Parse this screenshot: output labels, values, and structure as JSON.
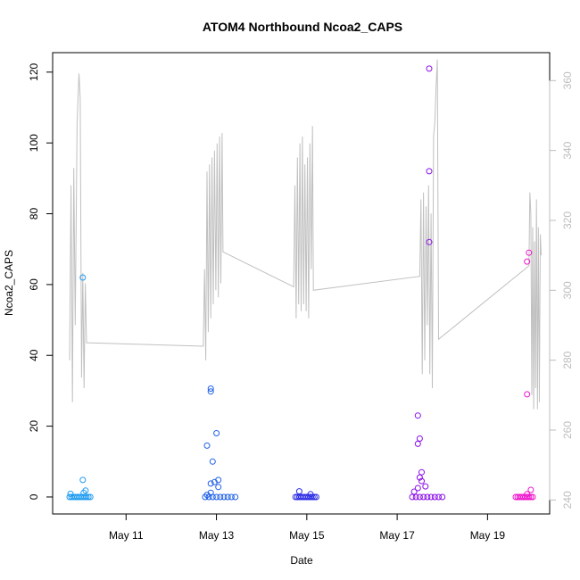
{
  "chart_data": {
    "type": "scatter",
    "title": "ATOM4 Northbound Ncoa2_CAPS",
    "xlabel": "Date",
    "ylabel": "Ncoa2_CAPS",
    "x_unit": "date",
    "xlim": [
      "2024-05-09T09:00",
      "2024-05-20T09:00"
    ],
    "ylim": [
      -4.8,
      125.5
    ],
    "y2lim": [
      236,
      368
    ],
    "x_ticks": [
      {
        "x": "2024-05-11T00:00",
        "label": "May 11"
      },
      {
        "x": "2024-05-13T00:00",
        "label": "May 13"
      },
      {
        "x": "2024-05-15T00:00",
        "label": "May 15"
      },
      {
        "x": "2024-05-17T00:00",
        "label": "May 17"
      },
      {
        "x": "2024-05-19T00:00",
        "label": "May 19"
      }
    ],
    "y_ticks": [
      0,
      20,
      40,
      60,
      80,
      100,
      120
    ],
    "y2_ticks": [
      240,
      260,
      280,
      300,
      320,
      340,
      360
    ],
    "grid": false,
    "legend": "none",
    "colors": {
      "line": "#c0c0c0",
      "right_axis": "#bdbdbd",
      "group_1": "#1e9bf0",
      "group_2": "#2060e8",
      "group_3": "#2a2ae6",
      "group_4": "#8a10e8",
      "group_5": "#ee16cc"
    },
    "scatter_series": [
      {
        "color_key": "group_1",
        "points": [
          {
            "x": "2024-05-09T18:00",
            "y": 0
          },
          {
            "x": "2024-05-09T19:00",
            "y": 0
          },
          {
            "x": "2024-05-09T20:00",
            "y": 0
          },
          {
            "x": "2024-05-09T21:00",
            "y": 0
          },
          {
            "x": "2024-05-09T22:00",
            "y": 0
          },
          {
            "x": "2024-05-09T23:00",
            "y": 0
          },
          {
            "x": "2024-05-10T00:00",
            "y": 0
          },
          {
            "x": "2024-05-10T01:00",
            "y": 0
          },
          {
            "x": "2024-05-10T02:00",
            "y": 0
          },
          {
            "x": "2024-05-10T03:00",
            "y": 0
          },
          {
            "x": "2024-05-10T04:00",
            "y": 0
          },
          {
            "x": "2024-05-10T05:00",
            "y": 0
          },
          {
            "x": "2024-05-09T18:30",
            "y": 0.9
          },
          {
            "x": "2024-05-10T01:30",
            "y": 1.2
          },
          {
            "x": "2024-05-10T02:30",
            "y": 1.8
          },
          {
            "x": "2024-05-10T01:00",
            "y": 4.8
          },
          {
            "x": "2024-05-10T01:00",
            "y": 62
          }
        ]
      },
      {
        "color_key": "group_2",
        "points": [
          {
            "x": "2024-05-12T18:00",
            "y": 0
          },
          {
            "x": "2024-05-12T20:00",
            "y": 0
          },
          {
            "x": "2024-05-12T22:00",
            "y": 0
          },
          {
            "x": "2024-05-13T00:00",
            "y": 0
          },
          {
            "x": "2024-05-13T02:00",
            "y": 0
          },
          {
            "x": "2024-05-13T04:00",
            "y": 0
          },
          {
            "x": "2024-05-13T06:00",
            "y": 0
          },
          {
            "x": "2024-05-13T08:00",
            "y": 0
          },
          {
            "x": "2024-05-13T10:00",
            "y": 0
          },
          {
            "x": "2024-05-12T19:00",
            "y": 0.6
          },
          {
            "x": "2024-05-12T21:00",
            "y": 1.2
          },
          {
            "x": "2024-05-13T01:00",
            "y": 2.8
          },
          {
            "x": "2024-05-12T21:00",
            "y": 3.8
          },
          {
            "x": "2024-05-12T23:00",
            "y": 4.2
          },
          {
            "x": "2024-05-13T01:00",
            "y": 4.8
          },
          {
            "x": "2024-05-12T22:00",
            "y": 10
          },
          {
            "x": "2024-05-12T19:00",
            "y": 14.5
          },
          {
            "x": "2024-05-13T00:00",
            "y": 18
          },
          {
            "x": "2024-05-12T21:00",
            "y": 29.8
          },
          {
            "x": "2024-05-12T21:00",
            "y": 30.6
          }
        ]
      },
      {
        "color_key": "group_3",
        "points": [
          {
            "x": "2024-05-14T18:00",
            "y": 0
          },
          {
            "x": "2024-05-14T19:00",
            "y": 0
          },
          {
            "x": "2024-05-14T20:00",
            "y": 0
          },
          {
            "x": "2024-05-14T21:00",
            "y": 0
          },
          {
            "x": "2024-05-14T22:00",
            "y": 0
          },
          {
            "x": "2024-05-14T23:00",
            "y": 0
          },
          {
            "x": "2024-05-15T00:00",
            "y": 0
          },
          {
            "x": "2024-05-15T01:00",
            "y": 0
          },
          {
            "x": "2024-05-15T02:00",
            "y": 0
          },
          {
            "x": "2024-05-15T03:00",
            "y": 0
          },
          {
            "x": "2024-05-15T04:00",
            "y": 0
          },
          {
            "x": "2024-05-15T05:00",
            "y": 0
          },
          {
            "x": "2024-05-14T20:00",
            "y": 1.6
          },
          {
            "x": "2024-05-15T02:00",
            "y": 0.8
          }
        ]
      },
      {
        "color_key": "group_4",
        "points": [
          {
            "x": "2024-05-17T08:00",
            "y": 0
          },
          {
            "x": "2024-05-17T10:00",
            "y": 0
          },
          {
            "x": "2024-05-17T12:00",
            "y": 0
          },
          {
            "x": "2024-05-17T14:00",
            "y": 0
          },
          {
            "x": "2024-05-17T16:00",
            "y": 0
          },
          {
            "x": "2024-05-17T18:00",
            "y": 0
          },
          {
            "x": "2024-05-17T20:00",
            "y": 0
          },
          {
            "x": "2024-05-17T22:00",
            "y": 0
          },
          {
            "x": "2024-05-18T00:00",
            "y": 0
          },
          {
            "x": "2024-05-17T09:00",
            "y": 1.5
          },
          {
            "x": "2024-05-17T11:00",
            "y": 2.5
          },
          {
            "x": "2024-05-17T15:00",
            "y": 3
          },
          {
            "x": "2024-05-17T13:00",
            "y": 4.5
          },
          {
            "x": "2024-05-17T12:00",
            "y": 5.5
          },
          {
            "x": "2024-05-17T13:00",
            "y": 7
          },
          {
            "x": "2024-05-17T11:00",
            "y": 15
          },
          {
            "x": "2024-05-17T12:00",
            "y": 16.5
          },
          {
            "x": "2024-05-17T11:00",
            "y": 23
          },
          {
            "x": "2024-05-17T17:00",
            "y": 72
          },
          {
            "x": "2024-05-17T17:00",
            "y": 92
          },
          {
            "x": "2024-05-17T17:00",
            "y": 121
          }
        ]
      },
      {
        "color_key": "group_5",
        "points": [
          {
            "x": "2024-05-19T15:00",
            "y": 0
          },
          {
            "x": "2024-05-19T16:00",
            "y": 0
          },
          {
            "x": "2024-05-19T17:00",
            "y": 0
          },
          {
            "x": "2024-05-19T18:00",
            "y": 0
          },
          {
            "x": "2024-05-19T19:00",
            "y": 0
          },
          {
            "x": "2024-05-19T20:00",
            "y": 0
          },
          {
            "x": "2024-05-19T21:00",
            "y": 0
          },
          {
            "x": "2024-05-19T22:00",
            "y": 0
          },
          {
            "x": "2024-05-19T23:00",
            "y": 0
          },
          {
            "x": "2024-05-20T00:00",
            "y": 0
          },
          {
            "x": "2024-05-19T21:00",
            "y": 0.8
          },
          {
            "x": "2024-05-19T23:00",
            "y": 2
          },
          {
            "x": "2024-05-19T21:00",
            "y": 29
          },
          {
            "x": "2024-05-19T21:00",
            "y": 66.5
          },
          {
            "x": "2024-05-19T22:00",
            "y": 69
          }
        ]
      }
    ],
    "line_series": {
      "axis": "right",
      "points": [
        {
          "x": "2024-05-09T18:00",
          "y2": 280
        },
        {
          "x": "2024-05-09T18:45",
          "y2": 330
        },
        {
          "x": "2024-05-09T19:30",
          "y2": 268
        },
        {
          "x": "2024-05-09T20:15",
          "y2": 335
        },
        {
          "x": "2024-05-09T21:00",
          "y2": 290
        },
        {
          "x": "2024-05-09T22:00",
          "y2": 348
        },
        {
          "x": "2024-05-09T23:00",
          "y2": 362
        },
        {
          "x": "2024-05-09T23:40",
          "y2": 355
        },
        {
          "x": "2024-05-10T00:20",
          "y2": 275
        },
        {
          "x": "2024-05-10T01:00",
          "y2": 305
        },
        {
          "x": "2024-05-10T01:40",
          "y2": 272
        },
        {
          "x": "2024-05-10T02:20",
          "y2": 302
        },
        {
          "x": "2024-05-10T03:00",
          "y2": 285
        },
        {
          "x": "2024-05-12T17:00",
          "y2": 284
        },
        {
          "x": "2024-05-12T17:40",
          "y2": 306
        },
        {
          "x": "2024-05-12T18:20",
          "y2": 280
        },
        {
          "x": "2024-05-12T19:00",
          "y2": 334
        },
        {
          "x": "2024-05-12T19:40",
          "y2": 288
        },
        {
          "x": "2024-05-12T20:20",
          "y2": 336
        },
        {
          "x": "2024-05-12T21:00",
          "y2": 292
        },
        {
          "x": "2024-05-12T21:40",
          "y2": 338
        },
        {
          "x": "2024-05-12T22:20",
          "y2": 296
        },
        {
          "x": "2024-05-12T23:00",
          "y2": 340
        },
        {
          "x": "2024-05-12T23:40",
          "y2": 300
        },
        {
          "x": "2024-05-13T00:20",
          "y2": 342
        },
        {
          "x": "2024-05-13T01:00",
          "y2": 298
        },
        {
          "x": "2024-05-13T01:40",
          "y2": 344
        },
        {
          "x": "2024-05-13T02:20",
          "y2": 302
        },
        {
          "x": "2024-05-13T03:00",
          "y2": 345
        },
        {
          "x": "2024-05-13T03:30",
          "y2": 311
        },
        {
          "x": "2024-05-14T17:00",
          "y2": 301
        },
        {
          "x": "2024-05-14T17:40",
          "y2": 330
        },
        {
          "x": "2024-05-14T18:20",
          "y2": 292
        },
        {
          "x": "2024-05-14T19:00",
          "y2": 338
        },
        {
          "x": "2024-05-14T19:40",
          "y2": 296
        },
        {
          "x": "2024-05-14T20:20",
          "y2": 342
        },
        {
          "x": "2024-05-14T21:00",
          "y2": 294
        },
        {
          "x": "2024-05-14T21:40",
          "y2": 344
        },
        {
          "x": "2024-05-14T22:20",
          "y2": 296
        },
        {
          "x": "2024-05-14T23:00",
          "y2": 336
        },
        {
          "x": "2024-05-14T23:40",
          "y2": 294
        },
        {
          "x": "2024-05-15T00:20",
          "y2": 338
        },
        {
          "x": "2024-05-15T01:00",
          "y2": 292
        },
        {
          "x": "2024-05-15T01:40",
          "y2": 342
        },
        {
          "x": "2024-05-15T02:20",
          "y2": 306
        },
        {
          "x": "2024-05-15T03:00",
          "y2": 347
        },
        {
          "x": "2024-05-15T03:30",
          "y2": 300
        },
        {
          "x": "2024-05-17T12:00",
          "y2": 304
        },
        {
          "x": "2024-05-17T12:40",
          "y2": 326
        },
        {
          "x": "2024-05-17T13:20",
          "y2": 276
        },
        {
          "x": "2024-05-17T14:00",
          "y2": 328
        },
        {
          "x": "2024-05-17T14:40",
          "y2": 280
        },
        {
          "x": "2024-05-17T15:20",
          "y2": 324
        },
        {
          "x": "2024-05-17T16:00",
          "y2": 290
        },
        {
          "x": "2024-05-17T16:40",
          "y2": 330
        },
        {
          "x": "2024-05-17T17:20",
          "y2": 276
        },
        {
          "x": "2024-05-17T18:00",
          "y2": 322
        },
        {
          "x": "2024-05-17T18:40",
          "y2": 272
        },
        {
          "x": "2024-05-17T19:20",
          "y2": 344
        },
        {
          "x": "2024-05-17T20:00",
          "y2": 348
        },
        {
          "x": "2024-05-17T20:40",
          "y2": 358
        },
        {
          "x": "2024-05-17T21:20",
          "y2": 366
        },
        {
          "x": "2024-05-17T22:00",
          "y2": 286
        },
        {
          "x": "2024-05-19T22:00",
          "y2": 307
        },
        {
          "x": "2024-05-19T22:30",
          "y2": 328
        },
        {
          "x": "2024-05-19T23:00",
          "y2": 322
        },
        {
          "x": "2024-05-19T23:30",
          "y2": 270
        },
        {
          "x": "2024-05-20T00:00",
          "y2": 318
        },
        {
          "x": "2024-05-20T00:30",
          "y2": 266
        },
        {
          "x": "2024-05-20T01:00",
          "y2": 314
        },
        {
          "x": "2024-05-20T01:30",
          "y2": 272
        },
        {
          "x": "2024-05-20T02:00",
          "y2": 326
        },
        {
          "x": "2024-05-20T02:30",
          "y2": 266
        },
        {
          "x": "2024-05-20T03:00",
          "y2": 318
        },
        {
          "x": "2024-05-20T03:30",
          "y2": 268
        },
        {
          "x": "2024-05-20T04:00",
          "y2": 316
        },
        {
          "x": "2024-05-20T04:30",
          "y2": 310
        }
      ]
    }
  }
}
